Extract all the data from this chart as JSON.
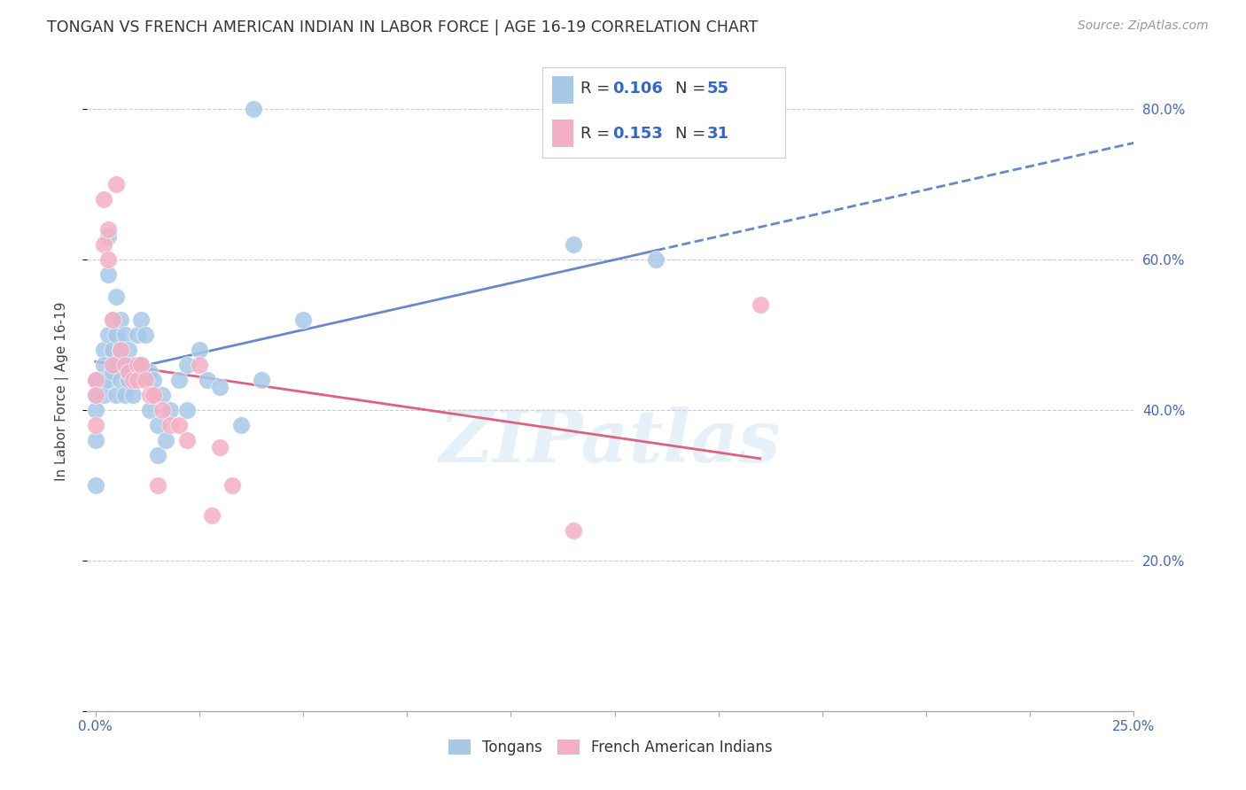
{
  "title": "TONGAN VS FRENCH AMERICAN INDIAN IN LABOR FORCE | AGE 16-19 CORRELATION CHART",
  "source": "Source: ZipAtlas.com",
  "ylabel": "In Labor Force | Age 16-19",
  "xlim": [
    -0.002,
    0.25
  ],
  "ylim": [
    0.0,
    0.85
  ],
  "tongan_color": "#a8c8e8",
  "french_color": "#f4afc4",
  "tongan_line_color": "#6688cc",
  "french_line_color": "#e06080",
  "R_tongan": 0.106,
  "N_tongan": 55,
  "R_french": 0.153,
  "N_french": 31,
  "legend_label_tongan": "Tongans",
  "legend_label_french": "French American Indians",
  "watermark": "ZIPatlas",
  "tongan_x": [
    0.0,
    0.0,
    0.0,
    0.0,
    0.0,
    0.002,
    0.002,
    0.002,
    0.002,
    0.003,
    0.003,
    0.003,
    0.003,
    0.004,
    0.004,
    0.004,
    0.005,
    0.005,
    0.005,
    0.005,
    0.006,
    0.006,
    0.006,
    0.007,
    0.007,
    0.007,
    0.008,
    0.008,
    0.009,
    0.009,
    0.01,
    0.01,
    0.011,
    0.011,
    0.012,
    0.013,
    0.013,
    0.014,
    0.015,
    0.015,
    0.016,
    0.017,
    0.018,
    0.02,
    0.022,
    0.022,
    0.025,
    0.027,
    0.03,
    0.035,
    0.038,
    0.04,
    0.05,
    0.115,
    0.135
  ],
  "tongan_y": [
    0.44,
    0.42,
    0.4,
    0.36,
    0.3,
    0.48,
    0.46,
    0.44,
    0.42,
    0.63,
    0.58,
    0.5,
    0.44,
    0.52,
    0.48,
    0.45,
    0.55,
    0.5,
    0.46,
    0.42,
    0.52,
    0.48,
    0.44,
    0.5,
    0.46,
    0.42,
    0.48,
    0.44,
    0.46,
    0.42,
    0.5,
    0.45,
    0.52,
    0.46,
    0.5,
    0.45,
    0.4,
    0.44,
    0.38,
    0.34,
    0.42,
    0.36,
    0.4,
    0.44,
    0.46,
    0.4,
    0.48,
    0.44,
    0.43,
    0.38,
    0.8,
    0.44,
    0.52,
    0.62,
    0.6
  ],
  "french_x": [
    0.0,
    0.0,
    0.0,
    0.002,
    0.002,
    0.003,
    0.003,
    0.004,
    0.004,
    0.005,
    0.006,
    0.007,
    0.008,
    0.009,
    0.01,
    0.01,
    0.011,
    0.012,
    0.013,
    0.014,
    0.015,
    0.016,
    0.018,
    0.02,
    0.022,
    0.025,
    0.028,
    0.03,
    0.033,
    0.115,
    0.16
  ],
  "french_y": [
    0.44,
    0.42,
    0.38,
    0.68,
    0.62,
    0.64,
    0.6,
    0.52,
    0.46,
    0.7,
    0.48,
    0.46,
    0.45,
    0.44,
    0.46,
    0.44,
    0.46,
    0.44,
    0.42,
    0.42,
    0.3,
    0.4,
    0.38,
    0.38,
    0.36,
    0.46,
    0.26,
    0.35,
    0.3,
    0.24,
    0.54
  ]
}
